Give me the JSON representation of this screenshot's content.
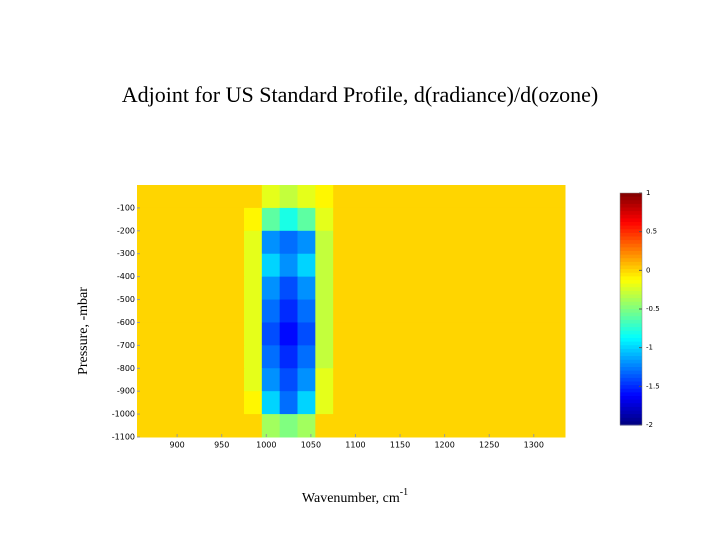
{
  "chart_data": {
    "type": "heatmap",
    "title": "Adjoint for US Standard Profile, d(radiance)/d(ozone)",
    "xlabel": "Wavenumber, cm",
    "xlabel_sup": "-1",
    "ylabel": "Pressure, -mbar",
    "colormap": "jet",
    "x": [
      865,
      885,
      905,
      925,
      945,
      965,
      985,
      1005,
      1025,
      1045,
      1065,
      1085,
      1105,
      1125,
      1145,
      1165,
      1185,
      1205,
      1225,
      1245,
      1265,
      1285,
      1305,
      1325
    ],
    "y": [
      -50,
      -150,
      -250,
      -350,
      -450,
      -550,
      -650,
      -750,
      -850,
      -950,
      -1050
    ],
    "z": [
      [
        0,
        0,
        0,
        0,
        0,
        0,
        0,
        -0.2,
        -0.3,
        -0.2,
        -0.1,
        0,
        0,
        0,
        0,
        0,
        0,
        0,
        0,
        0,
        0,
        0,
        0,
        0
      ],
      [
        0,
        0,
        0,
        0,
        0,
        0,
        -0.1,
        -0.6,
        -0.8,
        -0.6,
        -0.2,
        0,
        0,
        0,
        0,
        0,
        0,
        0,
        0,
        0,
        0,
        0,
        0,
        0
      ],
      [
        0,
        0,
        0,
        0,
        0,
        0,
        -0.2,
        -1.2,
        -1.3,
        -1.2,
        -0.3,
        0,
        0,
        0,
        0,
        0,
        0,
        0,
        0,
        0,
        0,
        0,
        0,
        0
      ],
      [
        0,
        0,
        0,
        0,
        0,
        0,
        -0.2,
        -1.0,
        -1.2,
        -1.0,
        -0.3,
        0,
        0,
        0,
        0,
        0,
        0,
        0,
        0,
        0,
        0,
        0,
        0,
        0
      ],
      [
        0,
        0,
        0,
        0,
        0,
        0,
        -0.2,
        -1.2,
        -1.4,
        -1.2,
        -0.3,
        0,
        0,
        0,
        0,
        0,
        0,
        0,
        0,
        0,
        0,
        0,
        0,
        0
      ],
      [
        0,
        0,
        0,
        0,
        0,
        0,
        -0.2,
        -1.3,
        -1.5,
        -1.3,
        -0.3,
        0,
        0,
        0,
        0,
        0,
        0,
        0,
        0,
        0,
        0,
        0,
        0,
        0
      ],
      [
        0,
        0,
        0,
        0,
        0,
        0,
        -0.2,
        -1.4,
        -1.6,
        -1.4,
        -0.3,
        0,
        0,
        0,
        0,
        0,
        0,
        0,
        0,
        0,
        0,
        0,
        0,
        0
      ],
      [
        0,
        0,
        0,
        0,
        0,
        0,
        -0.2,
        -1.3,
        -1.5,
        -1.3,
        -0.3,
        0,
        0,
        0,
        0,
        0,
        0,
        0,
        0,
        0,
        0,
        0,
        0,
        0
      ],
      [
        0,
        0,
        0,
        0,
        0,
        0,
        -0.2,
        -1.2,
        -1.4,
        -1.2,
        -0.2,
        0,
        0,
        0,
        0,
        0,
        0,
        0,
        0,
        0,
        0,
        0,
        0,
        0
      ],
      [
        0,
        0,
        0,
        0,
        0,
        0,
        -0.1,
        -1.0,
        -1.3,
        -1.0,
        -0.2,
        0,
        0,
        0,
        0,
        0,
        0,
        0,
        0,
        0,
        0,
        0,
        0,
        0
      ],
      [
        0,
        0,
        0,
        0,
        0,
        0,
        0,
        -0.4,
        -0.5,
        -0.4,
        0,
        0,
        0,
        0,
        0,
        0,
        0,
        0,
        0,
        0,
        0,
        0,
        0,
        0
      ]
    ],
    "xlim": [
      855,
      1335
    ],
    "xticks": [
      900,
      950,
      1000,
      1050,
      1100,
      1150,
      1200,
      1250,
      1300
    ],
    "ylim": [
      -1100,
      0
    ],
    "yticks": [
      -100,
      -200,
      -300,
      -400,
      -500,
      -600,
      -700,
      -800,
      -900,
      -1000,
      -1100
    ],
    "clim": [
      -2,
      1
    ],
    "cticks": [
      1,
      0.5,
      0,
      -0.5,
      -1,
      -1.5,
      -2
    ]
  }
}
